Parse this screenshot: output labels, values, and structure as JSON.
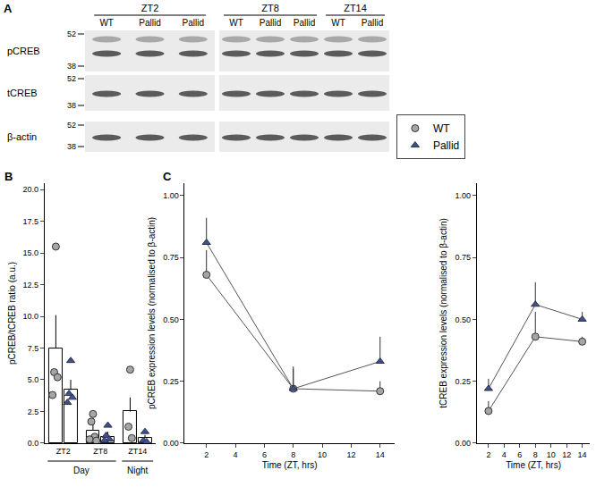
{
  "blot": {
    "label": "A",
    "time_groups": [
      {
        "label": "ZT2",
        "lanes": [
          "WT",
          "Pallid",
          "Pallid"
        ]
      },
      {
        "label": "ZT8",
        "lanes": [
          "WT",
          "Pallid",
          "Pallid"
        ]
      },
      {
        "label": "ZT14",
        "lanes": [
          "WT",
          "Pallid"
        ]
      }
    ],
    "rows": [
      "pCREB",
      "tCREB",
      "β-actin"
    ],
    "markers": [
      52,
      38
    ]
  },
  "chart_data": [
    {
      "label": "B",
      "type": "bar",
      "categories": [
        "ZT2",
        "ZT8",
        "ZT14"
      ],
      "groups": [
        {
          "label": "Day",
          "categories": [
            "ZT2",
            "ZT8"
          ]
        },
        {
          "label": "Night",
          "categories": [
            "ZT14"
          ]
        }
      ],
      "ylabel": "pCREB/tCREB ratio (a.u.)",
      "ylim": [
        0,
        20.5
      ],
      "yticks": [
        {
          "value": 0,
          "label": "0.0"
        },
        {
          "value": 2.5,
          "label": "2.5"
        },
        {
          "value": 5,
          "label": "5.0"
        },
        {
          "value": 7.5,
          "label": "7.5"
        },
        {
          "value": 10,
          "label": "10.0"
        },
        {
          "value": 12.5,
          "label": "12.5"
        },
        {
          "value": 15,
          "label": "15.0"
        },
        {
          "value": 17.5,
          "label": "17.5"
        },
        {
          "value": 20,
          "label": "20.0"
        }
      ],
      "grid": false,
      "series": [
        {
          "name": "WT",
          "color": "#a6a6a6",
          "marker": "circle",
          "values": [
            7.5,
            1.0,
            2.5
          ],
          "errors": [
            2.6,
            0.9,
            1.1
          ],
          "points": [
            [
              15.5,
              5.6,
              5.2,
              3.8
            ],
            [
              2.3,
              1.7,
              0.5,
              0.3,
              0.2
            ],
            [
              5.8,
              1.3,
              0.4
            ]
          ]
        },
        {
          "name": "Pallid",
          "color": "#3b4f9c",
          "marker": "triangle-up",
          "values": [
            4.2,
            0.5,
            0.4
          ],
          "errors": [
            0.8,
            0.4,
            0.25
          ],
          "points": [
            [
              6.5,
              3.9,
              3.6,
              3.2
            ],
            [
              1.4,
              0.6,
              0.3,
              0.2
            ],
            [
              0.9,
              0.2,
              0.1
            ]
          ]
        }
      ]
    },
    {
      "label": "C",
      "type": "line",
      "xlabel": "Time (ZT, hrs)",
      "ylabel": "pCREB expression levels (normalised to β-actin)",
      "x": [
        2,
        8,
        14
      ],
      "xlim": [
        0.5,
        15
      ],
      "xticks": [
        2,
        4,
        6,
        8,
        10,
        12,
        14
      ],
      "ylim": [
        0,
        1.05
      ],
      "yticks": [
        {
          "value": 0,
          "label": "0.00"
        },
        {
          "value": 0.25,
          "label": "0.25"
        },
        {
          "value": 0.5,
          "label": "0.50"
        },
        {
          "value": 0.75,
          "label": "0.75"
        },
        {
          "value": 1,
          "label": "1.00"
        }
      ],
      "grid": false,
      "series": [
        {
          "name": "WT",
          "color": "#a6a6a6",
          "marker": "circle",
          "values": [
            0.68,
            0.22,
            0.21
          ],
          "errors": [
            0.1,
            0.08,
            0.04
          ]
        },
        {
          "name": "Pallid",
          "color": "#3b4f9c",
          "marker": "triangle-up",
          "values": [
            0.81,
            0.22,
            0.33
          ],
          "errors": [
            0.1,
            0.09,
            0.1
          ]
        }
      ]
    },
    {
      "type": "line",
      "xlabel": "Time (ZT, hrs)",
      "ylabel": "tCREB expression levels (normalised to β-actin)",
      "x": [
        2,
        8,
        14
      ],
      "xlim": [
        0.5,
        15
      ],
      "xticks": [
        2,
        4,
        6,
        8,
        10,
        12,
        14
      ],
      "ylim": [
        0,
        1.05
      ],
      "yticks": [
        {
          "value": 0,
          "label": "0.00"
        },
        {
          "value": 0.25,
          "label": "0.25"
        },
        {
          "value": 0.5,
          "label": "0.50"
        },
        {
          "value": 0.75,
          "label": "0.75"
        },
        {
          "value": 1,
          "label": "1.00"
        }
      ],
      "grid": false,
      "series": [
        {
          "name": "WT",
          "color": "#a6a6a6",
          "marker": "circle",
          "values": [
            0.13,
            0.43,
            0.41
          ],
          "errors": [
            0.04,
            0.1,
            0.02
          ]
        },
        {
          "name": "Pallid",
          "color": "#3b4f9c",
          "marker": "triangle-up",
          "values": [
            0.22,
            0.56,
            0.5
          ],
          "errors": [
            0.04,
            0.09,
            0.03
          ]
        }
      ]
    }
  ]
}
